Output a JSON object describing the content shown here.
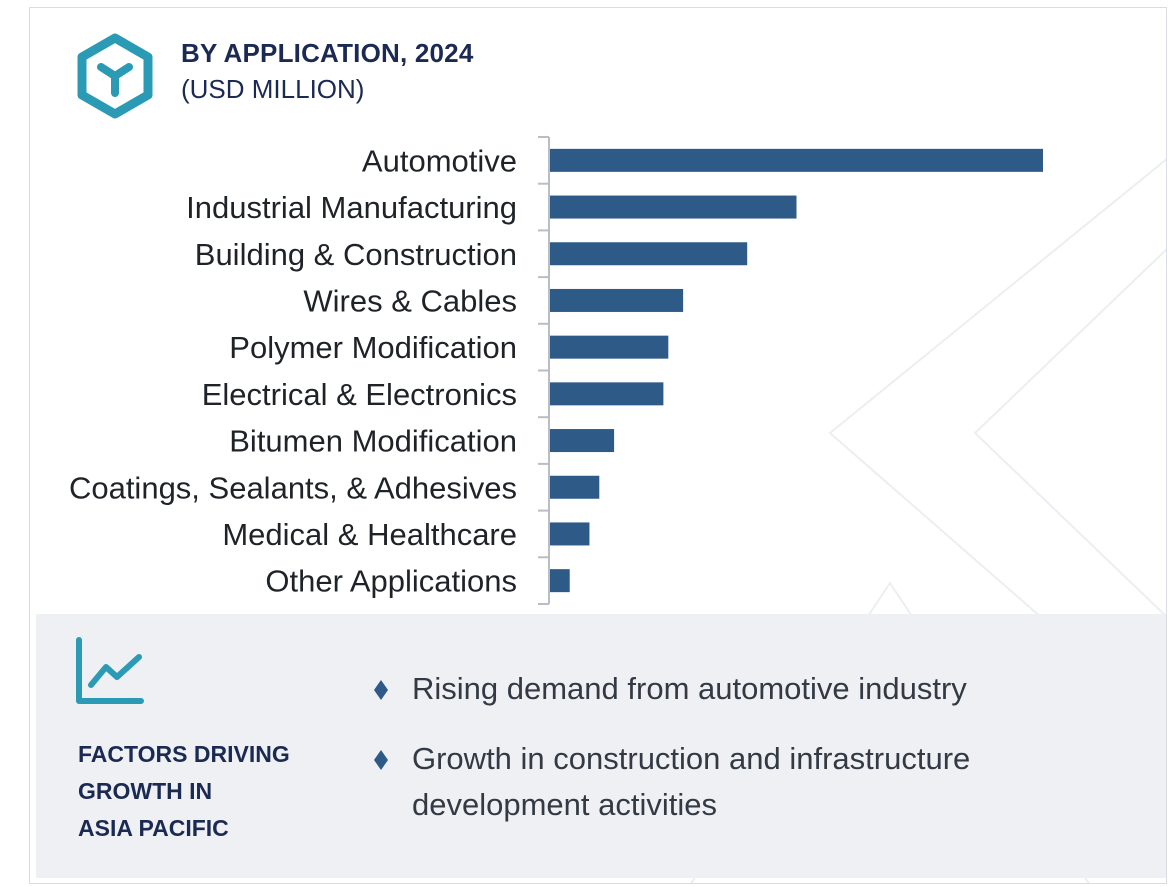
{
  "header": {
    "title": "BY APPLICATION, 2024",
    "subtitle": "(USD MILLION)",
    "logo_icon": "hexagon-y-icon"
  },
  "chart_data": {
    "type": "bar",
    "orientation": "horizontal",
    "title": "BY APPLICATION, 2024",
    "subtitle": "(USD MILLION)",
    "categories": [
      "Automotive",
      "Industrial Manufacturing",
      "Building & Construction",
      "Wires & Cables",
      "Polymer Modification",
      "Electrical & Electronics",
      "Bitumen Modification",
      "Coatings, Sealants, & Adhesives",
      "Medical & Healthcare",
      "Other Applications"
    ],
    "values": [
      100,
      50,
      40,
      27,
      24,
      23,
      13,
      10,
      8,
      4
    ],
    "value_axis_visible": false,
    "grid": false,
    "bar_color": "#2d5a87",
    "axis_color": "#b9bec6"
  },
  "panel": {
    "icon": "line-chart-growth-icon",
    "title_lines": [
      "FACTORS DRIVING",
      "GROWTH IN",
      "ASIA PACIFIC"
    ],
    "bullets": [
      "Rising demand from automotive industry",
      "Growth in construction and infrastructure development activities"
    ],
    "bullet_icon": "diamond-bullet-icon",
    "accent_color": "#2b9bb5",
    "background_color": "#eef0f4"
  }
}
